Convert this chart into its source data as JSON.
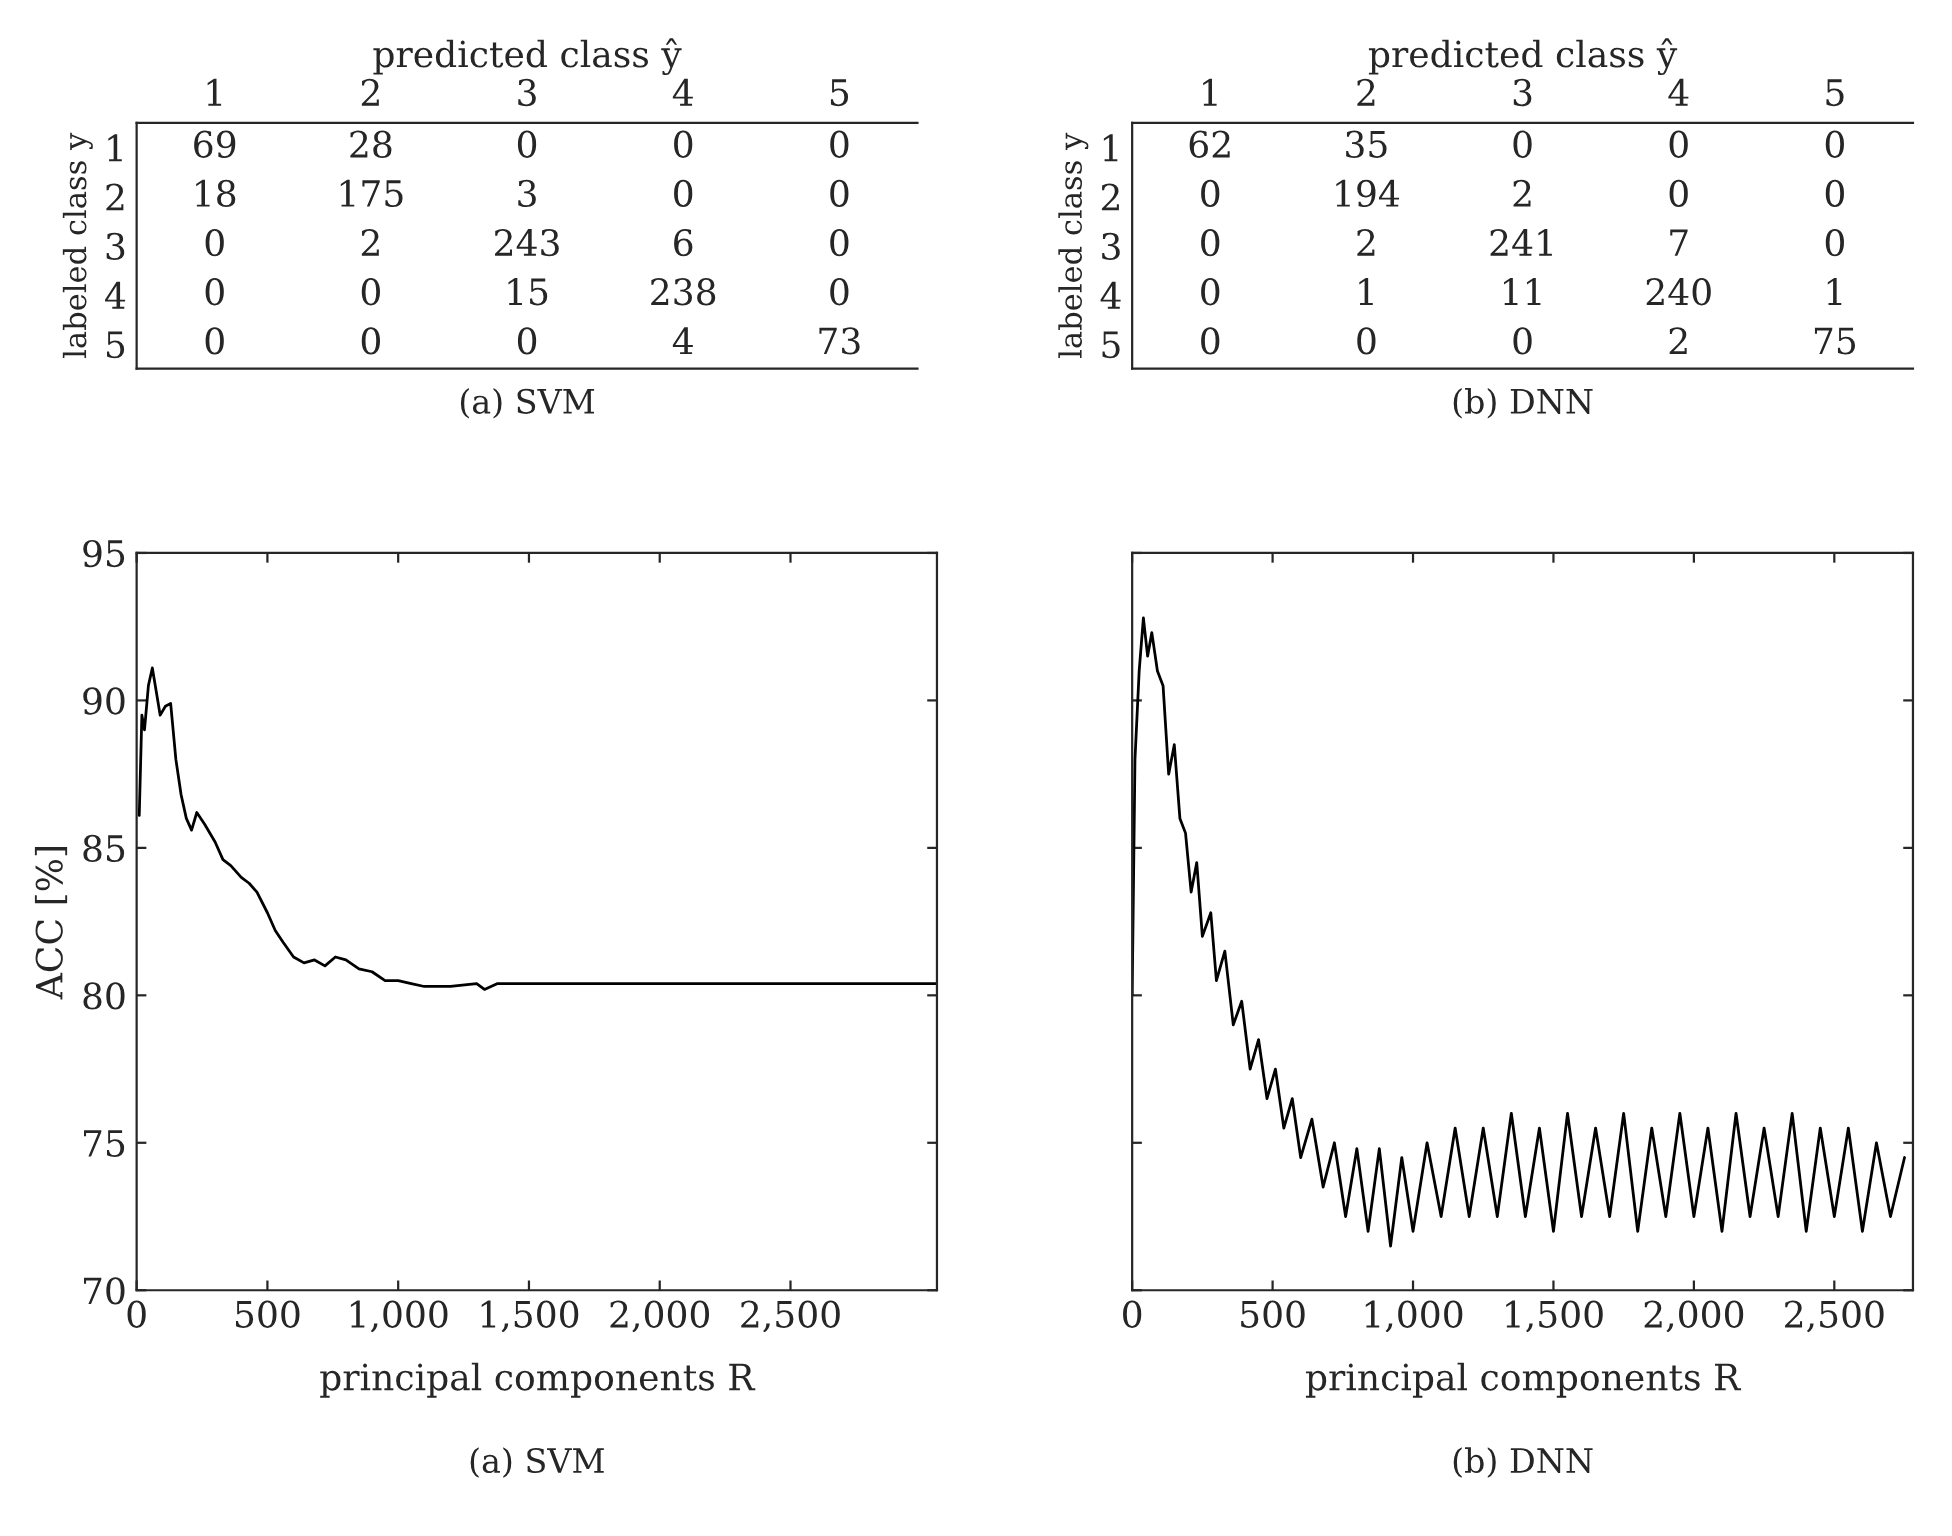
{
  "chart_data": [
    {
      "type": "heatmap",
      "title": "(a) SVM",
      "xlabel": "predicted class ŷ",
      "ylabel": "labeled class y",
      "categories": [
        "1",
        "2",
        "3",
        "4",
        "5"
      ],
      "y_categories": [
        "1",
        "2",
        "3",
        "4",
        "5"
      ],
      "data_labels": true,
      "cells": [
        [
          69,
          28,
          0,
          0,
          0
        ],
        [
          18,
          175,
          3,
          0,
          0
        ],
        [
          0,
          2,
          243,
          6,
          0
        ],
        [
          0,
          0,
          15,
          238,
          0
        ],
        [
          0,
          0,
          0,
          4,
          73
        ]
      ]
    },
    {
      "type": "heatmap",
      "title": "(b) DNN",
      "xlabel": "predicted class ŷ",
      "ylabel": "labeled class y",
      "categories": [
        "1",
        "2",
        "3",
        "4",
        "5"
      ],
      "y_categories": [
        "1",
        "2",
        "3",
        "4",
        "5"
      ],
      "data_labels": true,
      "cells": [
        [
          62,
          35,
          0,
          0,
          0
        ],
        [
          0,
          194,
          2,
          0,
          0
        ],
        [
          0,
          2,
          241,
          7,
          0
        ],
        [
          0,
          1,
          11,
          240,
          1
        ],
        [
          0,
          0,
          0,
          2,
          75
        ]
      ]
    },
    {
      "type": "line",
      "title": "(a) SVM",
      "xlabel": "principal components R",
      "ylabel": "ACC [%]",
      "xlim": [
        0,
        3060
      ],
      "ylim": [
        70,
        95
      ],
      "xticks": [
        0,
        500,
        {
          "value": 1000,
          "label": "1,000"
        },
        {
          "value": 1500,
          "label": "1,500"
        },
        {
          "value": 2000,
          "label": "2,000"
        },
        {
          "value": 2500,
          "label": "2,500"
        }
      ],
      "yticks": [
        70,
        75,
        80,
        85,
        90,
        95
      ],
      "grid": false,
      "legend": false,
      "series": [
        {
          "color": "#000000",
          "x": [
            10,
            20,
            30,
            45,
            60,
            75,
            90,
            110,
            130,
            150,
            170,
            190,
            210,
            230,
            260,
            300,
            330,
            360,
            400,
            430,
            460,
            500,
            530,
            560,
            600,
            640,
            680,
            720,
            760,
            800,
            850,
            900,
            950,
            1000,
            1050,
            1100,
            1200,
            1300,
            1330,
            1380,
            1500,
            2000,
            2500,
            3060
          ],
          "values": [
            86.1,
            89.5,
            89.0,
            90.5,
            91.1,
            90.3,
            89.5,
            89.8,
            89.9,
            88.0,
            86.8,
            86.0,
            85.6,
            86.2,
            85.8,
            85.2,
            84.6,
            84.4,
            84.0,
            83.8,
            83.5,
            82.8,
            82.2,
            81.8,
            81.3,
            81.1,
            81.2,
            81.0,
            81.3,
            81.2,
            80.9,
            80.8,
            80.5,
            80.5,
            80.4,
            80.3,
            80.3,
            80.4,
            80.2,
            80.4,
            80.4,
            80.4,
            80.4,
            80.4
          ]
        }
      ]
    },
    {
      "type": "line",
      "title": "(b) DNN",
      "xlabel": "principal components R",
      "xlim": [
        0,
        2780
      ],
      "ylim": [
        70,
        95
      ],
      "tick_labels": "x",
      "xticks": [
        0,
        500,
        {
          "value": 1000,
          "label": "1,000"
        },
        {
          "value": 1500,
          "label": "1,500"
        },
        {
          "value": 2000,
          "label": "2,000"
        },
        {
          "value": 2500,
          "label": "2,500"
        }
      ],
      "yticks": [
        70,
        75,
        80,
        85,
        90,
        95
      ],
      "grid": false,
      "legend": false,
      "series": [
        {
          "color": "#000000",
          "x": [
            0,
            10,
            25,
            40,
            55,
            70,
            90,
            110,
            130,
            150,
            170,
            190,
            210,
            230,
            250,
            280,
            300,
            330,
            360,
            390,
            420,
            450,
            480,
            510,
            540,
            570,
            600,
            640,
            680,
            720,
            760,
            800,
            840,
            880,
            920,
            960,
            1000,
            1050,
            1100,
            1150,
            1200,
            1250,
            1300,
            1350,
            1400,
            1450,
            1500,
            1550,
            1600,
            1650,
            1700,
            1750,
            1800,
            1850,
            1900,
            1950,
            2000,
            2050,
            2100,
            2150,
            2200,
            2250,
            2300,
            2350,
            2400,
            2450,
            2500,
            2550,
            2600,
            2650,
            2700,
            2750
          ],
          "values": [
            80,
            88,
            91,
            92.8,
            91.5,
            92.3,
            91,
            90.5,
            87.5,
            88.5,
            86,
            85.5,
            83.5,
            84.5,
            82,
            82.8,
            80.5,
            81.5,
            79,
            79.8,
            77.5,
            78.5,
            76.5,
            77.5,
            75.5,
            76.5,
            74.5,
            75.8,
            73.5,
            75,
            72.5,
            74.8,
            72,
            74.8,
            71.5,
            74.5,
            72,
            75,
            72.5,
            75.5,
            72.5,
            75.5,
            72.5,
            76,
            72.5,
            75.5,
            72,
            76,
            72.5,
            75.5,
            72.5,
            76,
            72,
            75.5,
            72.5,
            76,
            72.5,
            75.5,
            72,
            76,
            72.5,
            75.5,
            72.5,
            76,
            72,
            75.5,
            72.5,
            75.5,
            72,
            75,
            72.5,
            74.5
          ]
        }
      ]
    }
  ]
}
